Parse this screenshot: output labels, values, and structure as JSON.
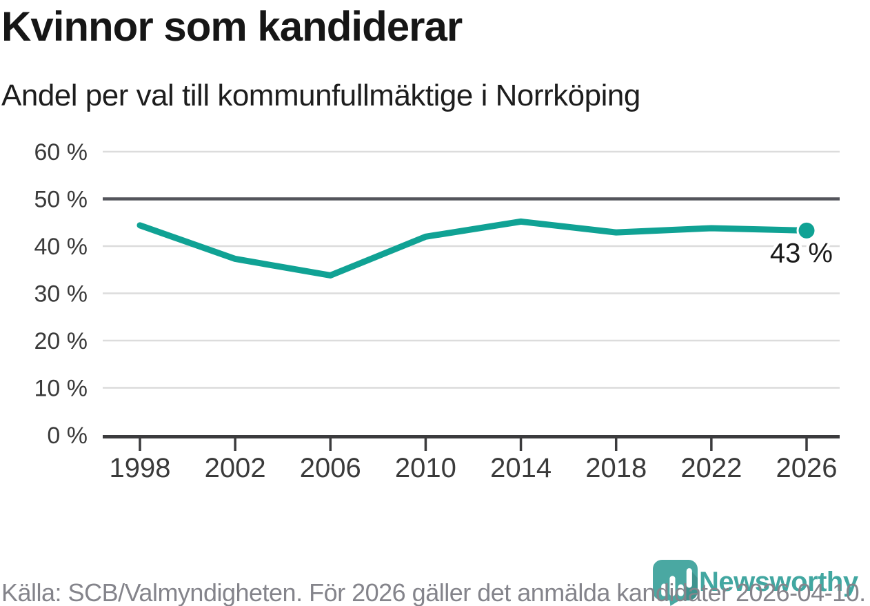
{
  "chart_data": {
    "type": "line",
    "title": "Kvinnor som kandiderar",
    "subtitle": "Andel per val till kommunfullmäktige i Norrköping",
    "xlabel": "",
    "ylabel": "",
    "x": [
      1998,
      2002,
      2006,
      2010,
      2014,
      2018,
      2022,
      2026
    ],
    "xtick_labels": [
      "1998",
      "2002",
      "2006",
      "2010",
      "2014",
      "2018",
      "2022",
      "2026"
    ],
    "values": [
      44.4,
      37.3,
      33.8,
      42.0,
      45.2,
      42.9,
      43.8,
      43.3
    ],
    "ylim": [
      0,
      60
    ],
    "yticks": [
      0,
      10,
      20,
      30,
      40,
      50,
      60
    ],
    "ytick_labels": [
      "0 %",
      "10 %",
      "20 %",
      "30 %",
      "40 %",
      "50 %",
      "60 %"
    ],
    "reference_line": 50,
    "end_point_label": "43 %",
    "grid": true,
    "legend": "none",
    "line_color": "#10a294"
  },
  "footer": {
    "source_text": "Källa: SCB/Valmyndigheten. För 2026 gäller det anmälda kandidater 2026-04-10.",
    "logo_text": "Newsworthy",
    "logo_icon_name": "newsworthy-chart-bubble-icon"
  },
  "colors": {
    "accent": "#10a294",
    "reference_line": "#54555c",
    "grid": "#dcdcdc",
    "axis": "#3b3b3d",
    "tick_label": "#3a3a3a",
    "title": "#161616",
    "subtitle": "#1d1d1d",
    "annotation": "#1a1a1a",
    "source_text": "#84848b",
    "logo": "#42a7a1",
    "logo_shade": "#3f938e"
  }
}
